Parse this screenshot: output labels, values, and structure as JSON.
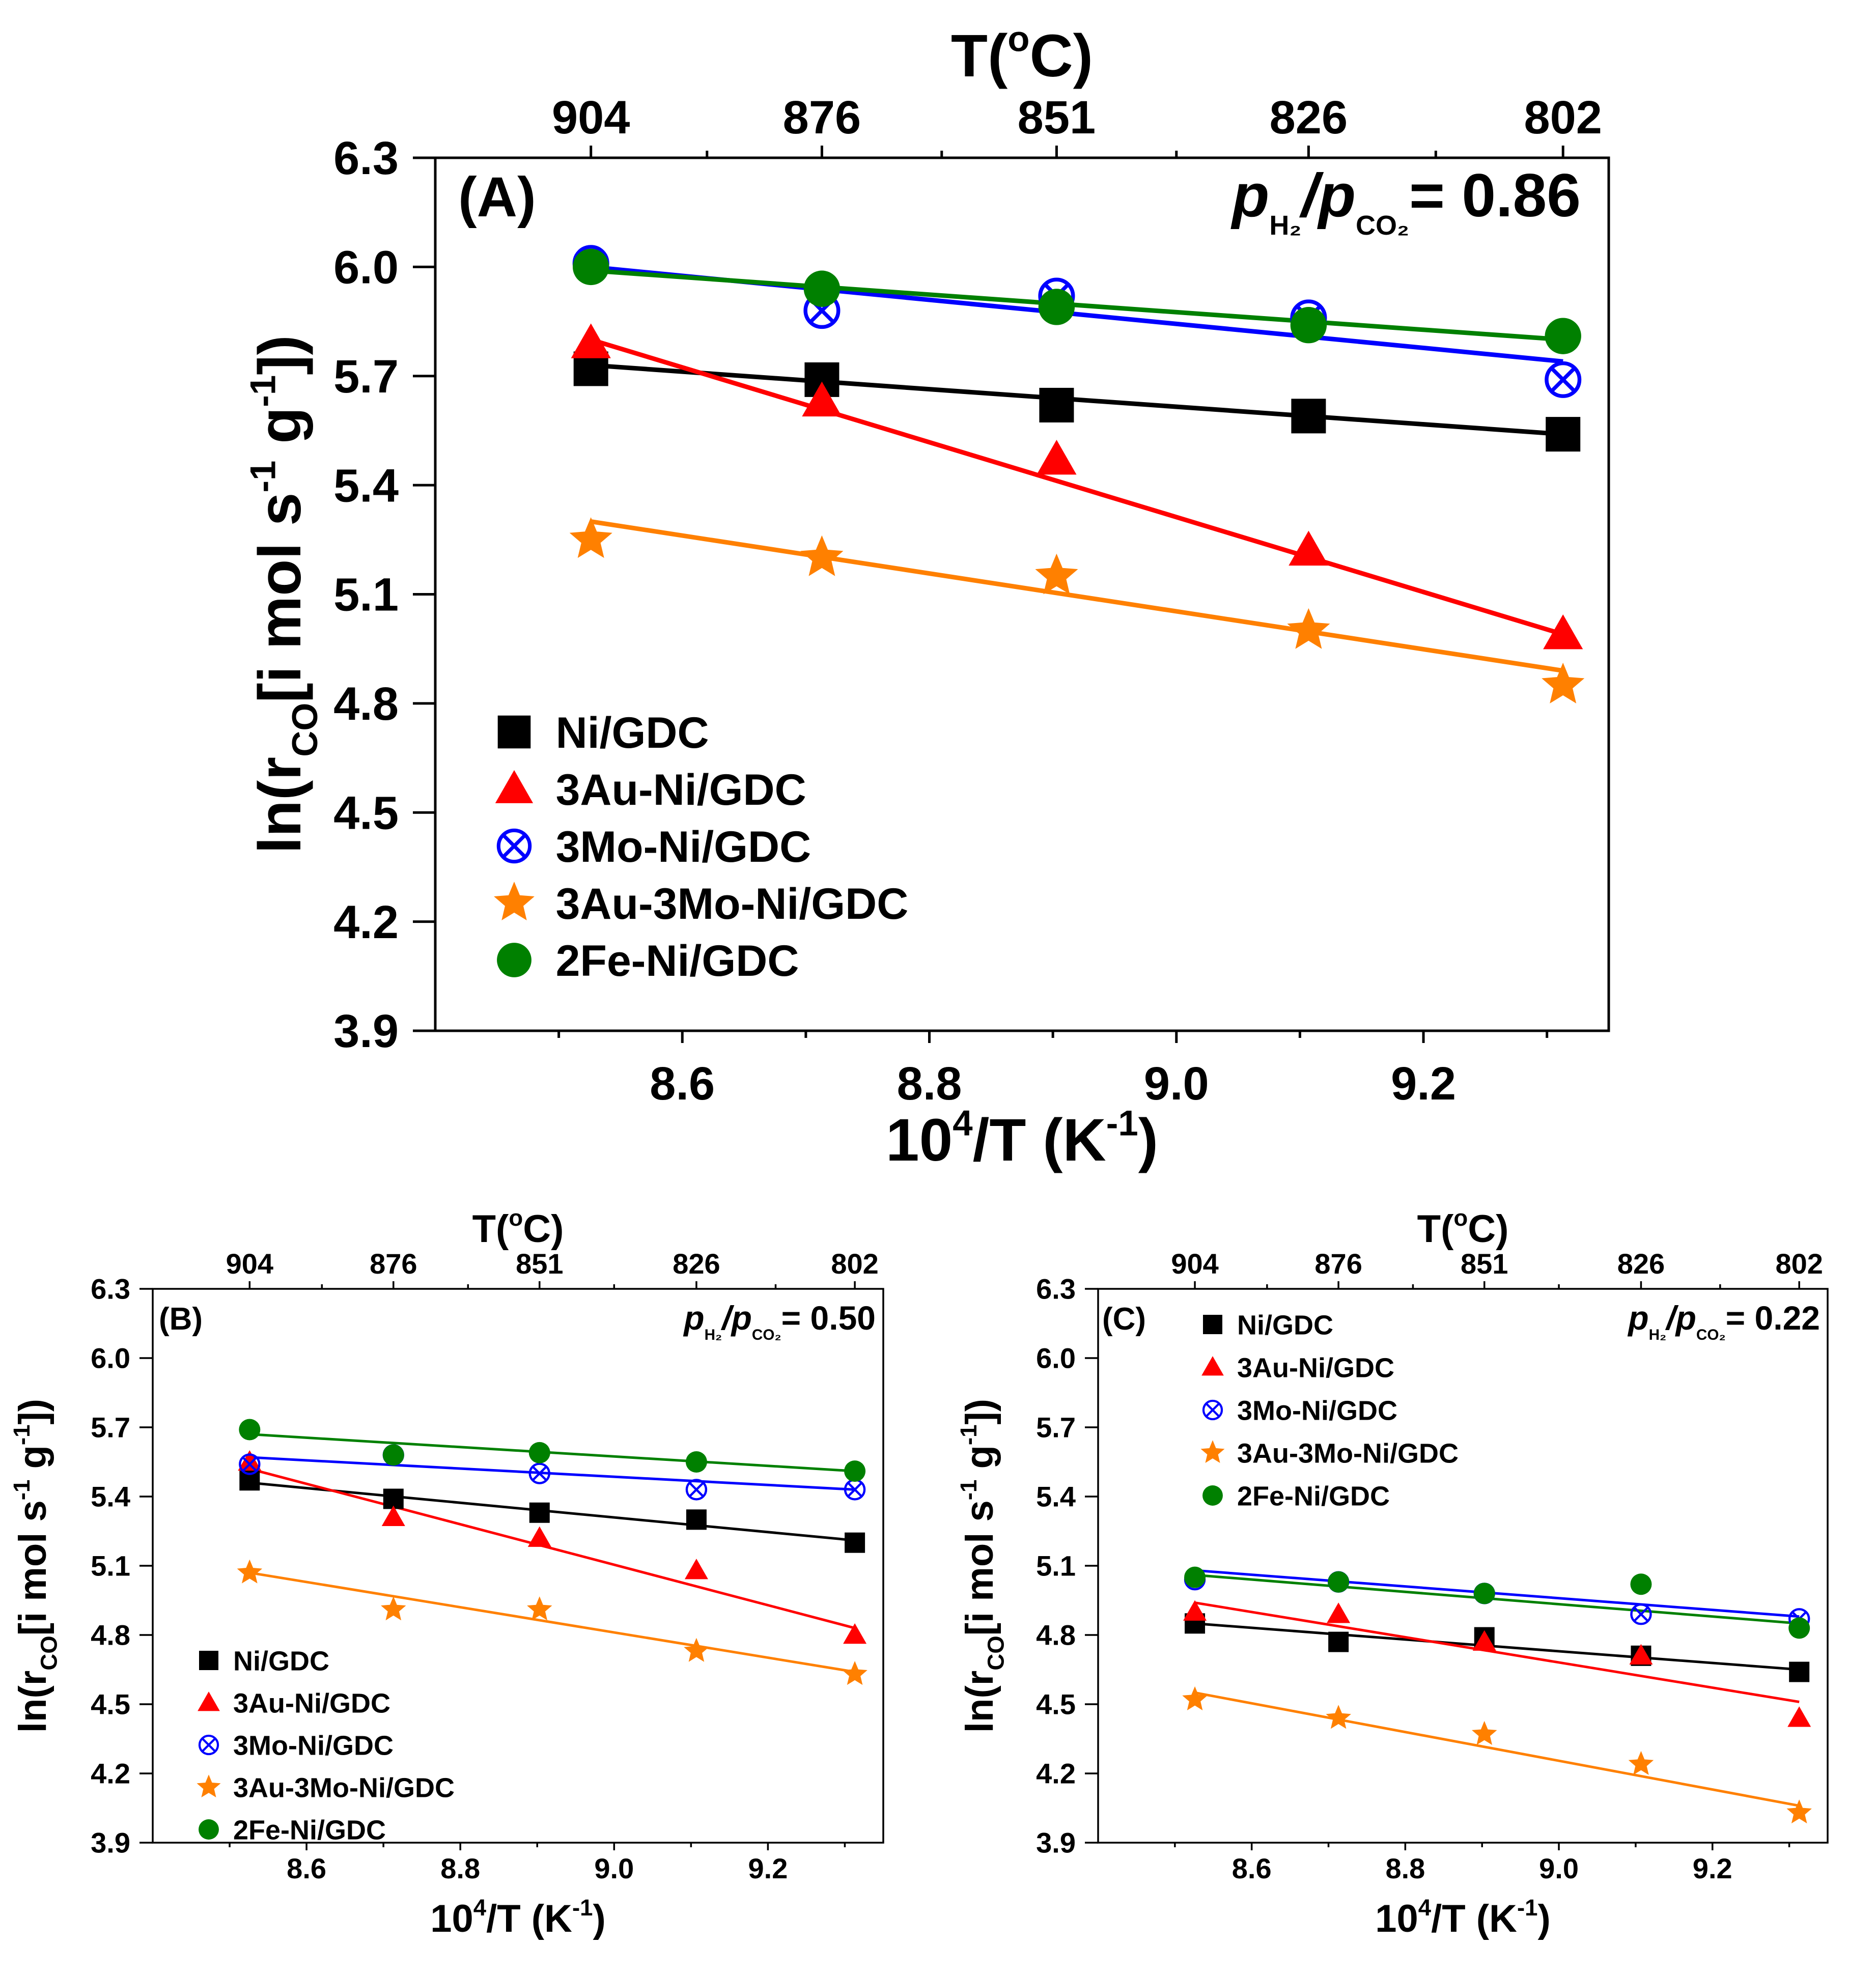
{
  "chart_data": [
    {
      "panel": "A",
      "type": "scatter",
      "panel_label": "(A)",
      "ratio": {
        "p1": "p",
        "s1": "H₂",
        "slash": "/",
        "p2": "p",
        "s2": "CO₂",
        "eq": "= 0.86"
      },
      "xlabel": {
        "base": "10",
        "sup": "4",
        "mid": "/T (K",
        "sup2": "-1",
        "end": ")"
      },
      "ylabel": {
        "a": "ln(r",
        "sub": "CO",
        "b": "[i mol s",
        "sup1": "-1",
        "c": " g",
        "sup2": "-1",
        "d": "])"
      },
      "top_axis": {
        "label": "T(",
        "deg": "o",
        "label_end": "C)",
        "ticks": [
          {
            "x": 8.526,
            "label": "904"
          },
          {
            "x": 8.713,
            "label": "876"
          },
          {
            "x": 8.903,
            "label": "851"
          },
          {
            "x": 9.107,
            "label": "826"
          },
          {
            "x": 9.313,
            "label": "802"
          }
        ],
        "minor": [
          8.62,
          8.81,
          9.0,
          9.21
        ]
      },
      "xlim": [
        8.4,
        9.35
      ],
      "ylim": [
        3.9,
        6.3
      ],
      "xticks": [
        "8.6",
        "8.8",
        "9.0",
        "9.2"
      ],
      "xminor": [
        8.5,
        8.7,
        8.9,
        9.1,
        9.3
      ],
      "yticks": [
        "3.9",
        "4.2",
        "4.5",
        "4.8",
        "5.1",
        "5.4",
        "5.7",
        "6.0",
        "6.3"
      ],
      "legend": {
        "position": "bottom-left",
        "show": true
      },
      "series": [
        {
          "name": "Ni/GDC",
          "color": "#000000",
          "marker": "square",
          "x": [
            8.526,
            8.713,
            8.903,
            9.107,
            9.313
          ],
          "values": [
            5.72,
            5.69,
            5.62,
            5.59,
            5.54
          ],
          "fit": [
            5.73,
            5.54
          ]
        },
        {
          "name": "3Au-Ni/GDC",
          "color": "#ff0000",
          "marker": "triangle",
          "x": [
            8.526,
            8.713,
            8.903,
            9.107,
            9.313
          ],
          "values": [
            5.79,
            5.63,
            5.47,
            5.22,
            4.99
          ],
          "fit": [
            5.8,
            4.99
          ]
        },
        {
          "name": "3Mo-Ni/GDC",
          "color": "#0000ff",
          "marker": "crosscircle",
          "x": [
            8.526,
            8.713,
            8.903,
            9.107,
            9.313
          ],
          "values": [
            6.01,
            5.88,
            5.92,
            5.86,
            5.69
          ],
          "fit": [
            6.0,
            5.74
          ]
        },
        {
          "name": "3Au-3Mo-Ni/GDC",
          "color": "#ff8000",
          "marker": "star",
          "x": [
            8.526,
            8.713,
            8.903,
            9.107,
            9.313
          ],
          "values": [
            5.25,
            5.2,
            5.15,
            5.0,
            4.85
          ],
          "fit": [
            5.3,
            4.89
          ]
        },
        {
          "name": "2Fe-Ni/GDC",
          "color": "#008000",
          "marker": "circle",
          "x": [
            8.526,
            8.713,
            8.903,
            9.107,
            9.313
          ],
          "values": [
            6.0,
            5.94,
            5.89,
            5.84,
            5.81
          ],
          "fit": [
            5.99,
            5.8
          ]
        }
      ]
    },
    {
      "panel": "B",
      "type": "scatter",
      "panel_label": "(B)",
      "ratio": {
        "p1": "p",
        "s1": "H₂",
        "slash": "/",
        "p2": "p",
        "s2": "CO₂",
        "eq": "= 0.50"
      },
      "xlabel": {
        "base": "10",
        "sup": "4",
        "mid": "/T (K",
        "sup2": "-1",
        "end": ")"
      },
      "ylabel": {
        "a": "ln(r",
        "sub": "CO",
        "b": "[i mol s",
        "sup1": "-1",
        "c": " g",
        "sup2": "-1",
        "d": "])"
      },
      "top_axis": {
        "label": "T(",
        "deg": "o",
        "label_end": "C)",
        "ticks": [
          {
            "x": 8.526,
            "label": "904"
          },
          {
            "x": 8.713,
            "label": "876"
          },
          {
            "x": 8.903,
            "label": "851"
          },
          {
            "x": 9.107,
            "label": "826"
          },
          {
            "x": 9.313,
            "label": "802"
          }
        ],
        "minor": [
          8.62,
          8.81,
          9.0,
          9.21
        ]
      },
      "xlim": [
        8.4,
        9.35
      ],
      "ylim": [
        3.9,
        6.3
      ],
      "xticks": [
        "8.6",
        "8.8",
        "9.0",
        "9.2"
      ],
      "xminor": [
        8.5,
        8.7,
        8.9,
        9.1,
        9.3
      ],
      "yticks": [
        "3.9",
        "4.2",
        "4.5",
        "4.8",
        "5.1",
        "5.4",
        "5.7",
        "6.0",
        "6.3"
      ],
      "legend": {
        "position": "bottom-left",
        "show": true
      },
      "series": [
        {
          "name": "Ni/GDC",
          "color": "#000000",
          "marker": "square",
          "x": [
            8.526,
            8.713,
            8.903,
            9.107,
            9.313
          ],
          "values": [
            5.47,
            5.39,
            5.33,
            5.3,
            5.2
          ],
          "fit": [
            5.46,
            5.21
          ]
        },
        {
          "name": "3Au-Ni/GDC",
          "color": "#ff0000",
          "marker": "triangle",
          "x": [
            8.526,
            8.713,
            8.903,
            9.107,
            9.313
          ],
          "values": [
            5.55,
            5.31,
            5.22,
            5.08,
            4.8
          ],
          "fit": [
            5.52,
            4.83
          ]
        },
        {
          "name": "3Mo-Ni/GDC",
          "color": "#0000ff",
          "marker": "crosscircle",
          "x": [
            8.526,
            8.713,
            8.903,
            9.107,
            9.313
          ],
          "values": [
            5.54,
            5.58,
            5.5,
            5.43,
            5.43
          ],
          "fit": [
            5.57,
            5.43
          ]
        },
        {
          "name": "3Au-3Mo-Ni/GDC",
          "color": "#ff8000",
          "marker": "star",
          "x": [
            8.526,
            8.713,
            8.903,
            9.107,
            9.313
          ],
          "values": [
            5.07,
            4.91,
            4.91,
            4.73,
            4.63
          ],
          "fit": [
            5.07,
            4.64
          ]
        },
        {
          "name": "2Fe-Ni/GDC",
          "color": "#008000",
          "marker": "circle",
          "x": [
            8.526,
            8.713,
            8.903,
            9.107,
            9.313
          ],
          "values": [
            5.69,
            5.58,
            5.59,
            5.55,
            5.51
          ],
          "fit": [
            5.67,
            5.51
          ]
        }
      ]
    },
    {
      "panel": "C",
      "type": "scatter",
      "panel_label": "(C)",
      "ratio": {
        "p1": "p",
        "s1": "H₂",
        "slash": "/",
        "p2": "p",
        "s2": "CO₂",
        "eq": "= 0.22"
      },
      "xlabel": {
        "base": "10",
        "sup": "4",
        "mid": "/T (K",
        "sup2": "-1",
        "end": ")"
      },
      "ylabel": {
        "a": "ln(r",
        "sub": "CO",
        "b": "[i mol s",
        "sup1": "-1",
        "c": " g",
        "sup2": "-1",
        "d": "])"
      },
      "top_axis": {
        "label": "T(",
        "deg": "o",
        "label_end": "C)",
        "ticks": [
          {
            "x": 8.526,
            "label": "904"
          },
          {
            "x": 8.713,
            "label": "876"
          },
          {
            "x": 8.903,
            "label": "851"
          },
          {
            "x": 9.107,
            "label": "826"
          },
          {
            "x": 9.313,
            "label": "802"
          }
        ],
        "minor": [
          8.62,
          8.81,
          9.0,
          9.21
        ]
      },
      "xlim": [
        8.4,
        9.35
      ],
      "ylim": [
        3.9,
        6.3
      ],
      "xticks": [
        "8.6",
        "8.8",
        "9.0",
        "9.2"
      ],
      "xminor": [
        8.5,
        8.7,
        8.9,
        9.1,
        9.3
      ],
      "yticks": [
        "3.9",
        "4.2",
        "4.5",
        "4.8",
        "5.1",
        "5.4",
        "5.7",
        "6.0",
        "6.3"
      ],
      "legend": {
        "position": "top-left",
        "show": true
      },
      "series": [
        {
          "name": "Ni/GDC",
          "color": "#000000",
          "marker": "square",
          "x": [
            8.526,
            8.713,
            8.903,
            9.107,
            9.313
          ],
          "values": [
            4.85,
            4.77,
            4.79,
            4.71,
            4.64
          ],
          "fit": [
            4.85,
            4.65
          ]
        },
        {
          "name": "3Au-Ni/GDC",
          "color": "#ff0000",
          "marker": "triangle",
          "x": [
            8.526,
            8.713,
            8.903,
            9.107,
            9.313
          ],
          "values": [
            4.9,
            4.89,
            4.77,
            4.71,
            4.44
          ],
          "fit": [
            4.94,
            4.51
          ]
        },
        {
          "name": "3Mo-Ni/GDC",
          "color": "#0000ff",
          "marker": "crosscircle",
          "x": [
            8.526,
            8.713,
            8.903,
            9.107,
            9.313
          ],
          "values": [
            5.04,
            5.03,
            4.98,
            4.89,
            4.87
          ],
          "fit": [
            5.08,
            4.88
          ]
        },
        {
          "name": "3Au-3Mo-Ni/GDC",
          "color": "#ff8000",
          "marker": "star",
          "x": [
            8.526,
            8.713,
            8.903,
            9.107,
            9.313
          ],
          "values": [
            4.52,
            4.44,
            4.37,
            4.24,
            4.03
          ],
          "fit": [
            4.55,
            4.06
          ]
        },
        {
          "name": "2Fe-Ni/GDC",
          "color": "#008000",
          "marker": "circle",
          "x": [
            8.526,
            8.713,
            8.903,
            9.107,
            9.313
          ],
          "values": [
            5.05,
            5.03,
            4.98,
            5.02,
            4.83
          ],
          "fit": [
            5.06,
            4.85
          ]
        }
      ]
    }
  ]
}
